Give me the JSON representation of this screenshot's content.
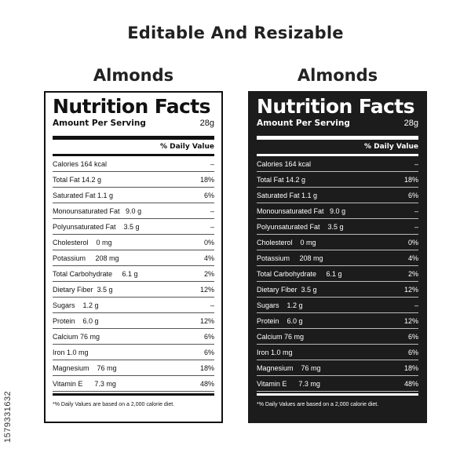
{
  "page": {
    "title": "Editable And Resizable",
    "side_id": "1579331632"
  },
  "labels": [
    {
      "heading": "Almonds",
      "theme": "light",
      "title": "Nutrition Facts",
      "serving_label": "Amount Per Serving",
      "serving_size": "28g",
      "dv_header": "% Daily Value",
      "rows": [
        {
          "name": "Calories 164 kcal",
          "dv": "–"
        },
        {
          "name": "Total Fat 14.2 g",
          "dv": "18%"
        },
        {
          "name": "Saturated Fat 1.1 g",
          "dv": "6%"
        },
        {
          "name": "Monounsaturated Fat   9.0 g",
          "dv": "–"
        },
        {
          "name": "Polyunsaturated Fat    3.5 g",
          "dv": "–"
        },
        {
          "name": "Cholesterol    0 mg",
          "dv": "0%"
        },
        {
          "name": "Potassium     208 mg",
          "dv": "4%"
        },
        {
          "name": "Total Carbohydrate     6.1 g",
          "dv": "2%"
        },
        {
          "name": "Dietary Fiber  3.5 g",
          "dv": "12%"
        },
        {
          "name": "Sugars    1.2 g",
          "dv": "–"
        },
        {
          "name": "Protein    6.0 g",
          "dv": "12%"
        },
        {
          "name": "Calcium 76 mg",
          "dv": "6%"
        },
        {
          "name": "Iron 1.0 mg",
          "dv": "6%"
        },
        {
          "name": "Magnesium    76 mg",
          "dv": "18%"
        },
        {
          "name": "Vitamin E      7.3 mg",
          "dv": "48%"
        }
      ],
      "footnote": "*% Daily Values are based on a 2,000 calorie diet.",
      "colors": {
        "background": "#ffffff",
        "text": "#111111"
      }
    },
    {
      "heading": "Almonds",
      "theme": "dark",
      "title": "Nutrition Facts",
      "serving_label": "Amount Per Serving",
      "serving_size": "28g",
      "dv_header": "% Daily Value",
      "rows": [
        {
          "name": "Calories 164 kcal",
          "dv": "–"
        },
        {
          "name": "Total Fat 14.2 g",
          "dv": "18%"
        },
        {
          "name": "Saturated Fat 1.1 g",
          "dv": "6%"
        },
        {
          "name": "Monounsaturated Fat   9.0 g",
          "dv": "–"
        },
        {
          "name": "Polyunsaturated Fat    3.5 g",
          "dv": "–"
        },
        {
          "name": "Cholesterol    0 mg",
          "dv": "0%"
        },
        {
          "name": "Potassium     208 mg",
          "dv": "4%"
        },
        {
          "name": "Total Carbohydrate     6.1 g",
          "dv": "2%"
        },
        {
          "name": "Dietary Fiber  3.5 g",
          "dv": "12%"
        },
        {
          "name": "Sugars    1.2 g",
          "dv": "–"
        },
        {
          "name": "Protein    6.0 g",
          "dv": "12%"
        },
        {
          "name": "Calcium 76 mg",
          "dv": "6%"
        },
        {
          "name": "Iron 1.0 mg",
          "dv": "6%"
        },
        {
          "name": "Magnesium    76 mg",
          "dv": "18%"
        },
        {
          "name": "Vitamin E      7.3 mg",
          "dv": "48%"
        }
      ],
      "footnote": "*% Daily Values are based on a 2,000 calorie diet.",
      "colors": {
        "background": "#1c1c1c",
        "text": "#ffffff"
      }
    }
  ]
}
